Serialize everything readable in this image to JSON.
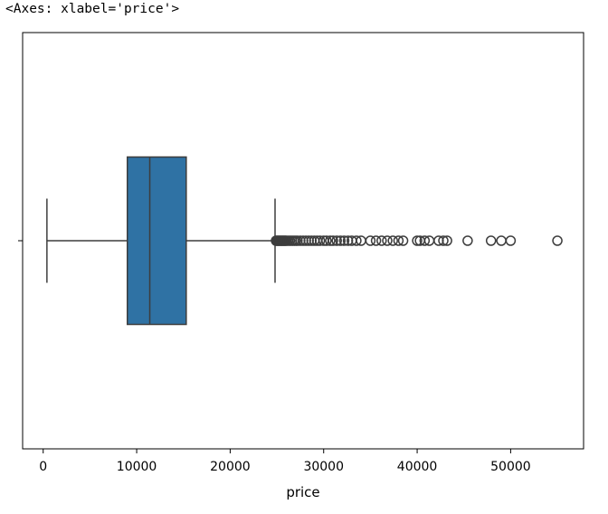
{
  "header": {
    "repr_text": "<Axes: xlabel='price'>"
  },
  "chart_data": {
    "type": "box",
    "orientation": "horizontal",
    "xlabel": "price",
    "ylabel": "",
    "xlim": [
      -2200,
      57800
    ],
    "xticks": [
      0,
      10000,
      20000,
      30000,
      40000,
      50000
    ],
    "xtick_labels": [
      "0",
      "10000",
      "20000",
      "30000",
      "40000",
      "50000"
    ],
    "grid": false,
    "stats": {
      "whisker_low": 400,
      "q1": 9000,
      "median": 11400,
      "q3": 15300,
      "whisker_high": 24800
    },
    "outliers": [
      24900,
      25000,
      25100,
      25200,
      25300,
      25400,
      25500,
      25600,
      25700,
      25800,
      25900,
      26000,
      26200,
      26400,
      26600,
      26800,
      27000,
      27200,
      27500,
      27800,
      28100,
      28400,
      28700,
      29000,
      29300,
      29600,
      30000,
      30300,
      30700,
      31000,
      31400,
      31800,
      32200,
      32600,
      33000,
      33500,
      34000,
      35000,
      35600,
      36200,
      36800,
      37400,
      38000,
      38500,
      40000,
      40300,
      40800,
      41300,
      42300,
      42800,
      43200,
      45400,
      47900,
      49000,
      50000,
      55000
    ],
    "colors": {
      "box_fill": "#2f72a4",
      "box_edge": "#3d3d3d",
      "whisker": "#3d3d3d",
      "outlier_edge": "#3d3d3d",
      "frame": "#000000"
    }
  }
}
